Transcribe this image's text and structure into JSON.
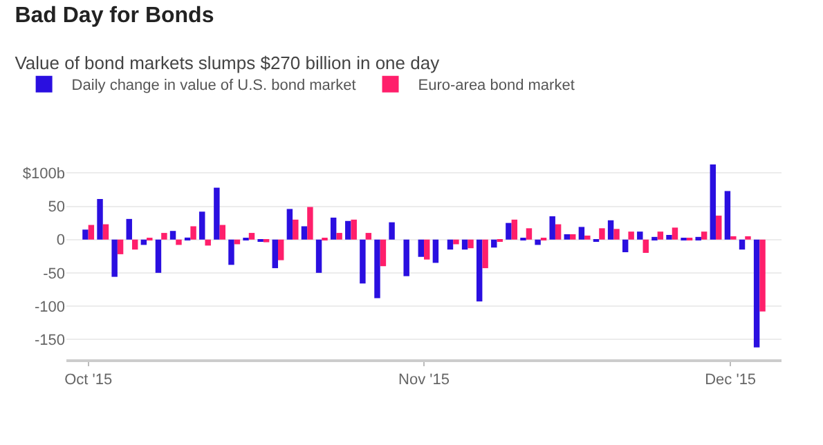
{
  "chart_data": {
    "type": "bar",
    "title": "Bad Day for Bonds",
    "subtitle": "Value of bond markets slumps $270 billion in one day",
    "categories": [
      "Oct '15",
      null,
      null,
      null,
      null,
      null,
      null,
      null,
      null,
      null,
      null,
      null,
      null,
      null,
      null,
      null,
      null,
      null,
      null,
      null,
      null,
      null,
      null,
      "Nov '15",
      null,
      null,
      null,
      null,
      null,
      null,
      null,
      null,
      null,
      null,
      null,
      null,
      null,
      null,
      null,
      null,
      null,
      null,
      null,
      null,
      "Dec '15",
      null,
      null
    ],
    "series": [
      {
        "name": "Daily change in value of U.S. bond market",
        "color": "#2a0fe0",
        "values": [
          15,
          61,
          -56,
          31,
          -8,
          -50,
          13,
          3,
          42,
          78,
          -38,
          2,
          -3,
          -43,
          46,
          20,
          -50,
          33,
          28,
          -66,
          -88,
          26,
          -55,
          -26,
          -35,
          -15,
          -15,
          -93,
          -12,
          25,
          1,
          -8,
          35,
          8,
          19,
          -3,
          29,
          -19,
          12,
          4,
          7,
          1,
          4,
          113,
          73,
          -15,
          -162
        ]
      },
      {
        "name": "Euro-area bond market",
        "color": "#ff1f6b",
        "values": [
          22,
          23,
          -22,
          -15,
          2,
          10,
          -8,
          20,
          -9,
          22,
          -7,
          10,
          -4,
          -31,
          30,
          49,
          2,
          10,
          30,
          10,
          -40,
          0,
          0,
          -30,
          0,
          -7,
          -13,
          -43,
          -3,
          30,
          17,
          2,
          23,
          8,
          6,
          17,
          16,
          12,
          -20,
          12,
          18,
          1,
          12,
          36,
          5,
          5,
          -108
        ]
      }
    ],
    "ylim": [
      -180,
      115
    ],
    "yticks": [
      {
        "value": 100,
        "label": "$100b"
      },
      50,
      0,
      -50,
      -100,
      -150
    ],
    "grid": "y",
    "legend": "top left"
  }
}
